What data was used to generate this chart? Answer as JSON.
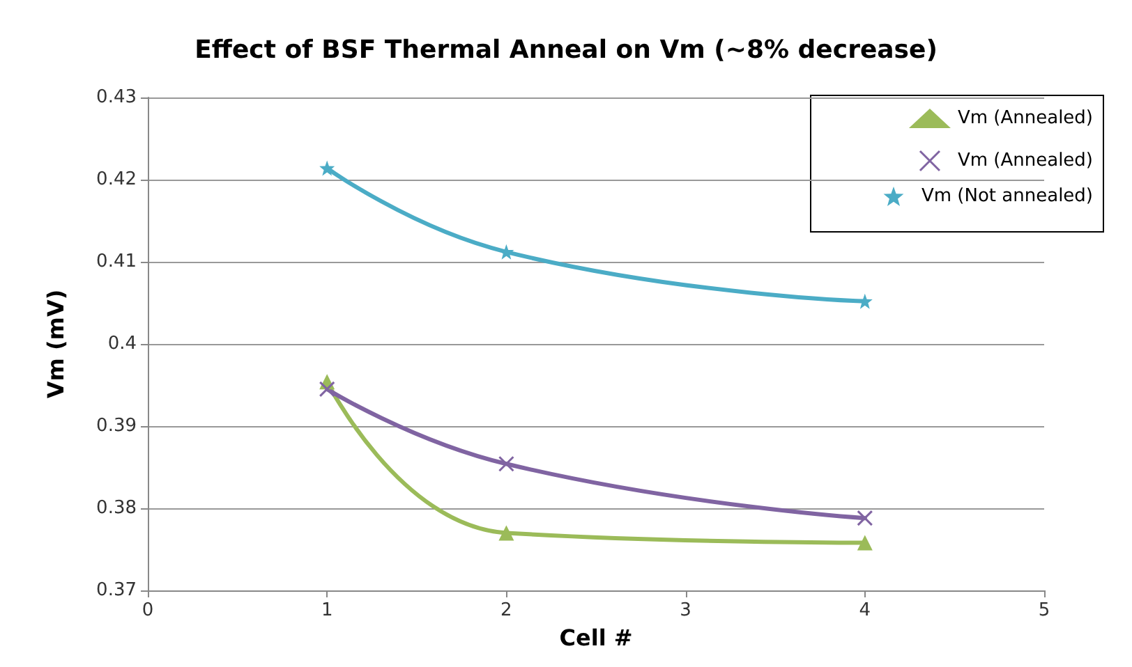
{
  "chart_data": {
    "type": "line",
    "title": "Effect of BSF Thermal Anneal on Vm (~8% decrease)",
    "xlabel": "Cell #",
    "ylabel": "Vm (mV)",
    "xlim": [
      0,
      5
    ],
    "xticks": [
      0,
      1,
      2,
      3,
      4,
      5
    ],
    "ylim": [
      0.37,
      0.43
    ],
    "yticks": [
      0.37,
      0.38,
      0.39,
      0.4,
      0.41,
      0.42,
      0.43
    ],
    "grid": "y",
    "legend": "top right",
    "series": [
      {
        "name": "Vm (Annealed)",
        "color": "#9bbb59",
        "marker": "triangle",
        "x": [
          1,
          2,
          4
        ],
        "values": [
          0.3954,
          0.377,
          0.3758
        ]
      },
      {
        "name": "Vm (Annealed)",
        "color": "#8064a2",
        "marker": "cross",
        "x": [
          1,
          2,
          4
        ],
        "values": [
          0.3945,
          0.3854,
          0.3788
        ]
      },
      {
        "name": "Vm (Not annealed)",
        "color": "#4bacc6",
        "marker": "star",
        "x": [
          1,
          2,
          4
        ],
        "values": [
          0.4214,
          0.4112,
          0.4052
        ]
      }
    ]
  }
}
